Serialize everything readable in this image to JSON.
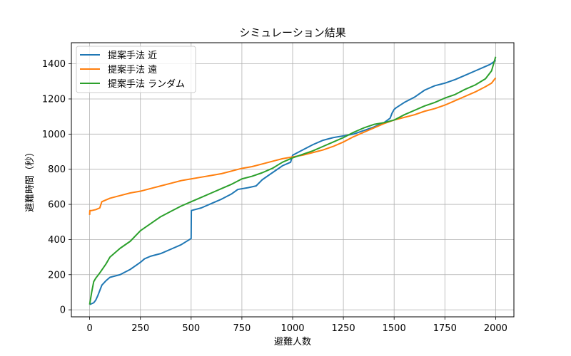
{
  "chart_data": {
    "type": "line",
    "title": "シミュレーション結果",
    "xlabel": "避難人数",
    "ylabel": "避難時間（秒）",
    "xlim": [
      -90,
      2090
    ],
    "ylim": [
      -40,
      1520
    ],
    "xticks": [
      0,
      250,
      500,
      750,
      1000,
      1250,
      1500,
      1750,
      2000
    ],
    "yticks": [
      0,
      200,
      400,
      600,
      800,
      1000,
      1200,
      1400
    ],
    "grid": true,
    "legend": "top-left",
    "series": [
      {
        "name": "提案手法 近",
        "color": "#1f77b4",
        "points": [
          [
            0,
            30
          ],
          [
            10,
            35
          ],
          [
            20,
            40
          ],
          [
            30,
            55
          ],
          [
            40,
            80
          ],
          [
            50,
            110
          ],
          [
            60,
            140
          ],
          [
            80,
            165
          ],
          [
            100,
            185
          ],
          [
            150,
            200
          ],
          [
            200,
            230
          ],
          [
            250,
            270
          ],
          [
            270,
            290
          ],
          [
            300,
            305
          ],
          [
            350,
            320
          ],
          [
            400,
            345
          ],
          [
            450,
            370
          ],
          [
            499,
            405
          ],
          [
            500,
            405
          ],
          [
            501,
            565
          ],
          [
            550,
            580
          ],
          [
            600,
            605
          ],
          [
            650,
            630
          ],
          [
            700,
            660
          ],
          [
            730,
            685
          ],
          [
            780,
            695
          ],
          [
            820,
            705
          ],
          [
            850,
            740
          ],
          [
            900,
            780
          ],
          [
            950,
            820
          ],
          [
            970,
            830
          ],
          [
            990,
            840
          ],
          [
            1000,
            880
          ],
          [
            1050,
            910
          ],
          [
            1100,
            940
          ],
          [
            1150,
            965
          ],
          [
            1200,
            980
          ],
          [
            1250,
            990
          ],
          [
            1300,
            1000
          ],
          [
            1350,
            1020
          ],
          [
            1400,
            1040
          ],
          [
            1450,
            1065
          ],
          [
            1480,
            1090
          ],
          [
            1490,
            1120
          ],
          [
            1500,
            1140
          ],
          [
            1510,
            1150
          ],
          [
            1550,
            1180
          ],
          [
            1600,
            1210
          ],
          [
            1650,
            1250
          ],
          [
            1700,
            1275
          ],
          [
            1750,
            1290
          ],
          [
            1800,
            1310
          ],
          [
            1850,
            1335
          ],
          [
            1900,
            1360
          ],
          [
            1950,
            1385
          ],
          [
            1970,
            1395
          ],
          [
            1990,
            1410
          ],
          [
            2000,
            1420
          ]
        ]
      },
      {
        "name": "提案手法 遠",
        "color": "#ff7f0e",
        "points": [
          [
            0,
            540
          ],
          [
            1,
            565
          ],
          [
            10,
            565
          ],
          [
            30,
            570
          ],
          [
            50,
            580
          ],
          [
            60,
            615
          ],
          [
            100,
            635
          ],
          [
            150,
            650
          ],
          [
            200,
            665
          ],
          [
            250,
            675
          ],
          [
            300,
            690
          ],
          [
            350,
            705
          ],
          [
            400,
            720
          ],
          [
            450,
            735
          ],
          [
            500,
            745
          ],
          [
            550,
            755
          ],
          [
            600,
            765
          ],
          [
            650,
            775
          ],
          [
            700,
            790
          ],
          [
            750,
            805
          ],
          [
            800,
            815
          ],
          [
            850,
            830
          ],
          [
            900,
            845
          ],
          [
            950,
            860
          ],
          [
            1000,
            870
          ],
          [
            1050,
            880
          ],
          [
            1100,
            895
          ],
          [
            1150,
            910
          ],
          [
            1200,
            930
          ],
          [
            1250,
            955
          ],
          [
            1300,
            985
          ],
          [
            1350,
            1010
          ],
          [
            1400,
            1035
          ],
          [
            1450,
            1060
          ],
          [
            1500,
            1080
          ],
          [
            1550,
            1095
          ],
          [
            1600,
            1110
          ],
          [
            1650,
            1130
          ],
          [
            1700,
            1145
          ],
          [
            1750,
            1165
          ],
          [
            1800,
            1190
          ],
          [
            1850,
            1215
          ],
          [
            1900,
            1240
          ],
          [
            1950,
            1270
          ],
          [
            1980,
            1290
          ],
          [
            2000,
            1320
          ]
        ]
      },
      {
        "name": "提案手法 ランダム",
        "color": "#2ca02c",
        "points": [
          [
            0,
            30
          ],
          [
            10,
            100
          ],
          [
            20,
            160
          ],
          [
            30,
            180
          ],
          [
            50,
            210
          ],
          [
            80,
            260
          ],
          [
            100,
            300
          ],
          [
            150,
            350
          ],
          [
            200,
            390
          ],
          [
            250,
            450
          ],
          [
            300,
            490
          ],
          [
            350,
            530
          ],
          [
            400,
            560
          ],
          [
            450,
            590
          ],
          [
            500,
            615
          ],
          [
            550,
            640
          ],
          [
            600,
            665
          ],
          [
            650,
            690
          ],
          [
            700,
            715
          ],
          [
            750,
            745
          ],
          [
            800,
            760
          ],
          [
            850,
            780
          ],
          [
            900,
            805
          ],
          [
            950,
            840
          ],
          [
            1000,
            865
          ],
          [
            1050,
            885
          ],
          [
            1100,
            905
          ],
          [
            1150,
            930
          ],
          [
            1200,
            955
          ],
          [
            1250,
            980
          ],
          [
            1300,
            1010
          ],
          [
            1350,
            1035
          ],
          [
            1400,
            1055
          ],
          [
            1450,
            1065
          ],
          [
            1500,
            1080
          ],
          [
            1550,
            1110
          ],
          [
            1600,
            1135
          ],
          [
            1650,
            1160
          ],
          [
            1700,
            1180
          ],
          [
            1750,
            1205
          ],
          [
            1800,
            1225
          ],
          [
            1850,
            1255
          ],
          [
            1900,
            1280
          ],
          [
            1950,
            1315
          ],
          [
            1980,
            1360
          ],
          [
            2000,
            1440
          ]
        ]
      }
    ]
  }
}
